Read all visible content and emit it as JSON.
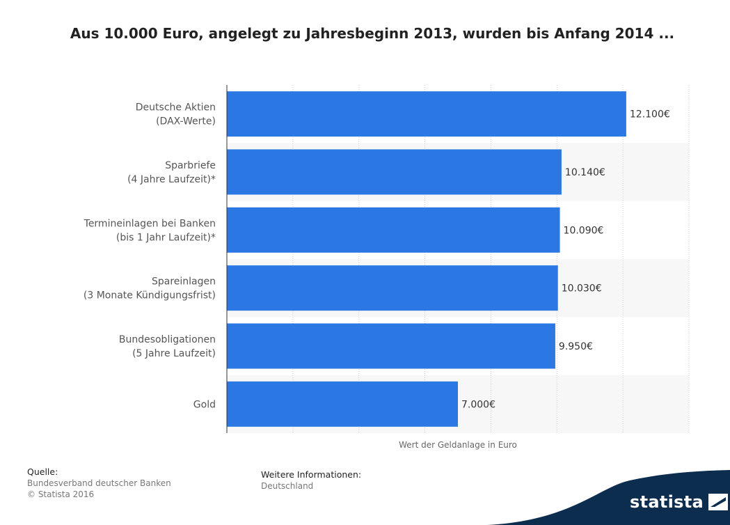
{
  "chart_data": {
    "type": "bar",
    "orientation": "horizontal",
    "title": "Aus 10.000 Euro, angelegt zu Jahresbeginn 2013, wurden bis Anfang 2014 ...",
    "xlabel": "Wert der Geldanlage in Euro",
    "ylabel": "",
    "categories": [
      [
        "Deutsche Aktien",
        "(DAX-Werte)"
      ],
      [
        "Sparbriefe",
        "(4 Jahre Laufzeit)*"
      ],
      [
        "Termineinlagen bei Banken",
        "(bis 1 Jahr Laufzeit)*"
      ],
      [
        "Spareinlagen",
        "(3 Monate Kündigungsfrist)"
      ],
      [
        "Bundesobligationen",
        "(5 Jahre Laufzeit)"
      ],
      [
        "Gold"
      ]
    ],
    "values": [
      12100,
      10140,
      10090,
      10030,
      9950,
      7000
    ],
    "value_labels": [
      "12.100€",
      "10.140€",
      "10.090€",
      "10.030€",
      "9.950€",
      "7.000€"
    ],
    "xlim": [
      0,
      14000
    ],
    "grid": true,
    "bar_color": "#2b78e4",
    "alt_row_color": "#f7f7f7"
  },
  "footer": {
    "source_heading": "Quelle:",
    "source_lines": [
      "Bundesverband deutscher Banken",
      "© Statista 2016"
    ],
    "info_heading": "Weitere Informationen:",
    "info_lines": [
      "Deutschland"
    ]
  },
  "branding": {
    "logo_text": "statista",
    "logo_icon": "statista-logo-icon",
    "color": "#0d2d4f"
  }
}
